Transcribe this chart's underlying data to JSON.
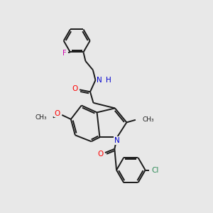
{
  "bg_color": "#e8e8e8",
  "bond_color": "#1a1a1a",
  "nitrogen_color": "#0000cd",
  "oxygen_color": "#ff0000",
  "fluorine_color": "#cc00aa",
  "chlorine_color": "#2e8b57",
  "line_width": 1.4,
  "figsize": [
    3.0,
    3.0
  ],
  "dpi": 100,
  "xlim": [
    0,
    10
  ],
  "ylim": [
    0,
    10
  ]
}
